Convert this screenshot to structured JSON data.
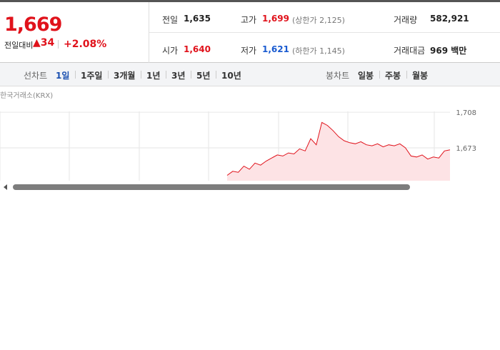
{
  "quote": {
    "price": "1,669",
    "change_label": "전일대비",
    "change": "34",
    "change_rate": "+2.08%",
    "stats": [
      {
        "label": "전일",
        "value": "1,635"
      },
      {
        "label": "고가",
        "value": "1,699",
        "note": "(상한가 2,125)"
      },
      {
        "label": "거래량",
        "value": "582,921"
      },
      {
        "label": "시가",
        "value": "1,640"
      },
      {
        "label": "저가",
        "value": "1,621",
        "note": "(하한가 1,145)"
      },
      {
        "label": "거래대금",
        "value": "969 백만"
      }
    ]
  },
  "tabs": {
    "line_label": "선차트",
    "line_items": [
      "1일",
      "1주일",
      "3개월",
      "1년",
      "3년",
      "5년",
      "10년"
    ],
    "candle_label": "봉차트",
    "candle_items": [
      "일봉",
      "주봉",
      "월봉"
    ]
  },
  "chart": {
    "source": "한국거래소(KRX)",
    "ylim": [
      1640,
      1720
    ],
    "yticks": [
      {
        "value": 1708,
        "label": "1,708"
      },
      {
        "value": 1673,
        "label": "1,673"
      }
    ],
    "values": [
      1646,
      1650,
      1649,
      1655,
      1652,
      1658,
      1656,
      1660,
      1663,
      1666,
      1665,
      1668,
      1667,
      1672,
      1670,
      1682,
      1676,
      1698,
      1695,
      1690,
      1684,
      1680,
      1678,
      1677,
      1679,
      1676,
      1675,
      1677,
      1674,
      1676,
      1675,
      1677,
      1673,
      1665,
      1664,
      1666,
      1662,
      1664,
      1663,
      1670,
      1671
    ]
  }
}
